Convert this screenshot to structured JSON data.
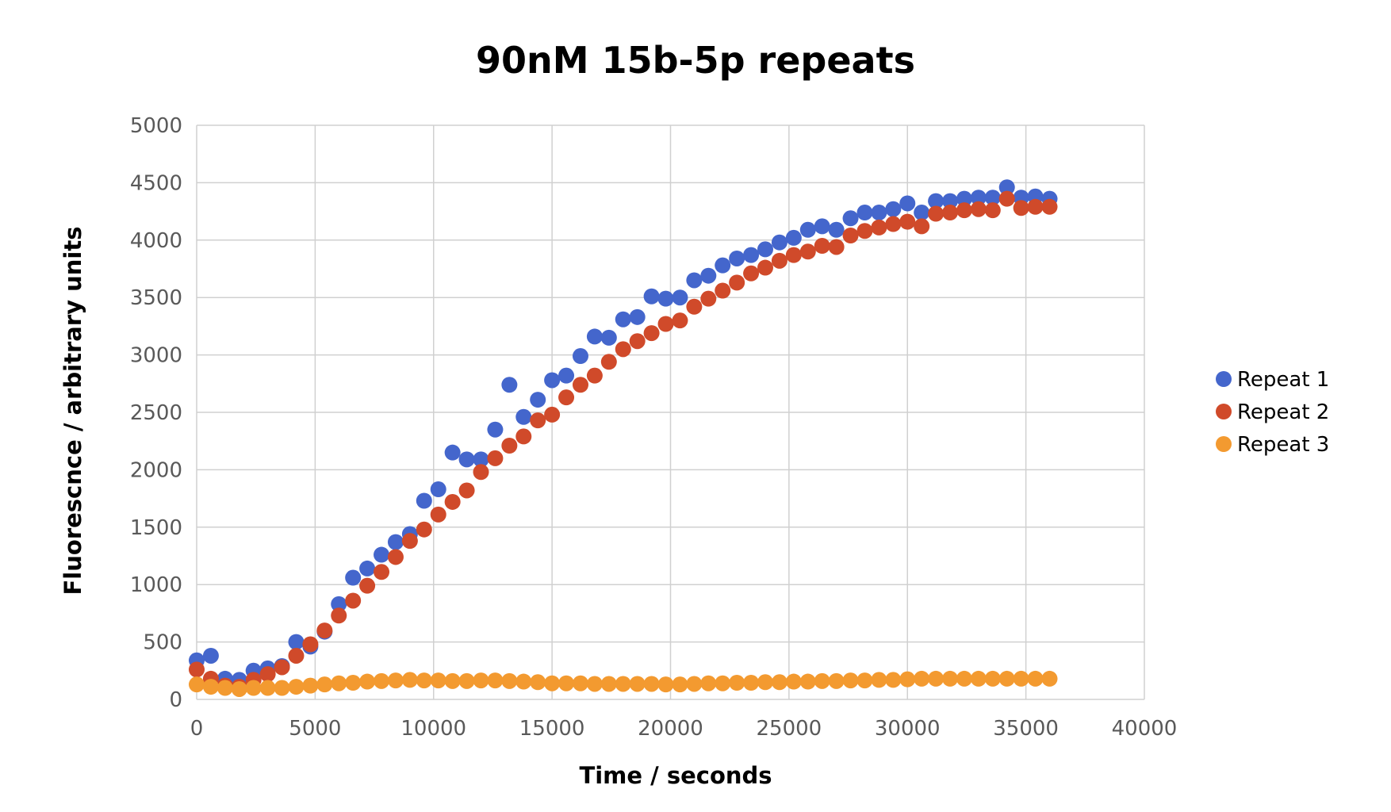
{
  "chart_data": {
    "type": "scatter",
    "title": "90nM 15b-5p repeats",
    "xlabel": "Time / seconds",
    "ylabel": "Fluorescnce / arbitrary units",
    "xlim": [
      0,
      40000
    ],
    "ylim": [
      0,
      5000
    ],
    "xticks": [
      0,
      5000,
      10000,
      15000,
      20000,
      25000,
      30000,
      35000,
      40000
    ],
    "yticks": [
      0,
      500,
      1000,
      1500,
      2000,
      2500,
      3000,
      3500,
      4000,
      4500,
      5000
    ],
    "grid": true,
    "legend_position": "right",
    "x": [
      0,
      600,
      1200,
      1800,
      2400,
      3000,
      3600,
      4200,
      4800,
      5400,
      6000,
      6600,
      7200,
      7800,
      8400,
      9000,
      9600,
      10200,
      10800,
      11400,
      12000,
      12600,
      13200,
      13800,
      14400,
      15000,
      15600,
      16200,
      16800,
      17400,
      18000,
      18600,
      19200,
      19800,
      20400,
      21000,
      21600,
      22200,
      22800,
      23400,
      24000,
      24600,
      25200,
      25800,
      26400,
      27000,
      27600,
      28200,
      28800,
      29400,
      30000,
      30600,
      31200,
      31800,
      32400,
      33000,
      33600,
      34200,
      34800,
      35400,
      36000
    ],
    "series": [
      {
        "name": "Repeat 1",
        "color": "#4466cc",
        "values": [
          340,
          380,
          180,
          170,
          250,
          270,
          290,
          500,
          460,
          590,
          830,
          1060,
          1140,
          1260,
          1370,
          1440,
          1730,
          1830,
          2150,
          2090,
          2090,
          2350,
          2740,
          2460,
          2610,
          2780,
          2820,
          2990,
          3160,
          3150,
          3310,
          3330,
          3510,
          3490,
          3500,
          3650,
          3690,
          3780,
          3840,
          3870,
          3920,
          3980,
          4020,
          4090,
          4120,
          4090,
          4190,
          4240,
          4240,
          4270,
          4320,
          4240,
          4340,
          4340,
          4360,
          4370,
          4370,
          4460,
          4370,
          4380,
          4360
        ]
      },
      {
        "name": "Repeat 2",
        "color": "#d04a2a",
        "values": [
          260,
          180,
          120,
          110,
          170,
          220,
          280,
          380,
          480,
          600,
          730,
          860,
          990,
          1110,
          1240,
          1380,
          1480,
          1610,
          1720,
          1820,
          1980,
          2100,
          2210,
          2290,
          2430,
          2480,
          2630,
          2740,
          2820,
          2940,
          3050,
          3120,
          3190,
          3270,
          3300,
          3420,
          3490,
          3560,
          3630,
          3710,
          3760,
          3820,
          3870,
          3900,
          3950,
          3940,
          4040,
          4080,
          4110,
          4140,
          4160,
          4120,
          4230,
          4240,
          4260,
          4270,
          4260,
          4360,
          4280,
          4290,
          4290
        ]
      },
      {
        "name": "Repeat 3",
        "color": "#f39a30",
        "values": [
          130,
          110,
          100,
          90,
          100,
          100,
          100,
          110,
          120,
          130,
          140,
          145,
          155,
          160,
          165,
          170,
          165,
          165,
          160,
          160,
          165,
          165,
          160,
          155,
          150,
          140,
          140,
          140,
          135,
          135,
          135,
          135,
          135,
          130,
          130,
          135,
          140,
          140,
          145,
          145,
          150,
          150,
          155,
          155,
          160,
          160,
          165,
          165,
          170,
          170,
          175,
          180,
          180,
          180,
          180,
          180,
          180,
          180,
          180,
          180,
          180
        ]
      }
    ]
  }
}
